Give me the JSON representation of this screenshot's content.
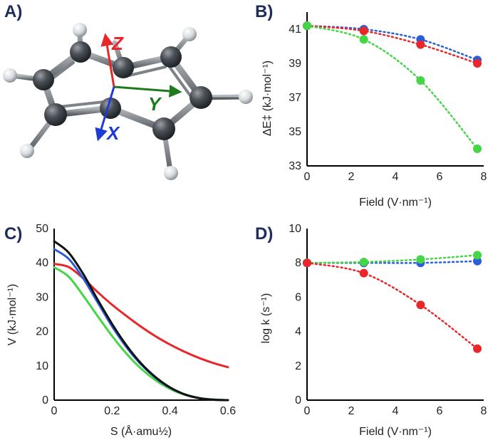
{
  "panels": {
    "a": {
      "label": "A)",
      "axes": [
        {
          "name": "Z",
          "color": "#e8272a"
        },
        {
          "name": "Y",
          "color": "#1e7a1e"
        },
        {
          "name": "X",
          "color": "#1f3bd6"
        }
      ]
    },
    "b": {
      "label": "B)"
    },
    "c": {
      "label": "C)"
    },
    "d": {
      "label": "D)"
    }
  },
  "chart_data": [
    {
      "id": "b",
      "type": "scatter",
      "xlabel": "Field (V·nm⁻¹)",
      "ylabel": "ΔE‡ (kJ·mol⁻¹)",
      "xlim": [
        0,
        8
      ],
      "ylim": [
        33,
        42
      ],
      "xticks": [
        "0",
        "2",
        "4",
        "6",
        "8"
      ],
      "yticks": [
        "33",
        "35",
        "37",
        "39",
        "41"
      ],
      "series": [
        {
          "color": "#2b5fd9",
          "x": [
            0,
            2.57,
            5.14,
            7.71
          ],
          "y": [
            41.2,
            41.0,
            40.4,
            39.2
          ]
        },
        {
          "color": "#e8272a",
          "x": [
            0,
            2.57,
            5.14,
            7.71
          ],
          "y": [
            41.2,
            40.9,
            40.1,
            39.0
          ]
        },
        {
          "color": "#44d644",
          "x": [
            0,
            2.57,
            5.14,
            7.71
          ],
          "y": [
            41.2,
            40.4,
            38.0,
            34.0
          ]
        }
      ]
    },
    {
      "id": "c",
      "type": "line",
      "xlabel": "S (Å·amu½)",
      "ylabel": "V (kJ·mol⁻¹)",
      "xlim": [
        0,
        0.6
      ],
      "ylim": [
        0,
        50
      ],
      "xticks": [
        "0",
        "0.2",
        "0.4",
        "0.6"
      ],
      "yticks": [
        "0",
        "10",
        "20",
        "30",
        "40",
        "50"
      ],
      "series": [
        {
          "color": "#e8272a",
          "x": [
            0,
            0.05,
            0.1,
            0.15,
            0.2,
            0.25,
            0.3,
            0.35,
            0.4,
            0.45,
            0.5,
            0.55,
            0.6
          ],
          "y": [
            39.7,
            38.8,
            35.5,
            31.5,
            27.8,
            24.5,
            21.4,
            18.6,
            16.2,
            14.1,
            12.3,
            10.8,
            9.6
          ]
        },
        {
          "color": "#44d644",
          "x": [
            0,
            0.05,
            0.1,
            0.15,
            0.2,
            0.25,
            0.3,
            0.35,
            0.4,
            0.45,
            0.5,
            0.55,
            0.6
          ],
          "y": [
            38.7,
            36.0,
            30.5,
            24.5,
            18.7,
            13.5,
            9.2,
            5.8,
            3.3,
            1.6,
            0.6,
            0.2,
            0.0
          ]
        },
        {
          "color": "#2b5fd9",
          "x": [
            0,
            0.05,
            0.1,
            0.15,
            0.2,
            0.25,
            0.3,
            0.35,
            0.4,
            0.45,
            0.5,
            0.55,
            0.6
          ],
          "y": [
            44.0,
            41.2,
            35.5,
            28.5,
            21.5,
            15.4,
            10.4,
            6.5,
            3.6,
            1.7,
            0.6,
            0.1,
            0.0
          ]
        },
        {
          "color": "#111111",
          "x": [
            0,
            0.05,
            0.1,
            0.15,
            0.2,
            0.25,
            0.3,
            0.35,
            0.4,
            0.45,
            0.5,
            0.55,
            0.6
          ],
          "y": [
            46.3,
            43.0,
            36.8,
            29.3,
            22.2,
            15.9,
            10.7,
            6.7,
            3.7,
            1.7,
            0.6,
            0.1,
            0.0
          ]
        }
      ]
    },
    {
      "id": "d",
      "type": "scatter",
      "xlabel": "Field (V·nm⁻¹)",
      "ylabel": "log k (s⁻¹)",
      "xlim": [
        0,
        8
      ],
      "ylim": [
        0,
        10
      ],
      "xticks": [
        "0",
        "2",
        "4",
        "6",
        "8"
      ],
      "yticks": [
        "0",
        "2",
        "4",
        "6",
        "8",
        "10"
      ],
      "series": [
        {
          "color": "#2b5fd9",
          "x": [
            0,
            2.57,
            5.14,
            7.71
          ],
          "y": [
            8.0,
            8.0,
            8.0,
            8.1
          ]
        },
        {
          "color": "#44d644",
          "x": [
            0,
            2.57,
            5.14,
            7.71
          ],
          "y": [
            8.0,
            8.05,
            8.2,
            8.45
          ]
        },
        {
          "color": "#e8272a",
          "x": [
            0,
            2.57,
            5.14,
            7.71
          ],
          "y": [
            8.0,
            7.4,
            5.55,
            3.0
          ]
        }
      ]
    }
  ]
}
